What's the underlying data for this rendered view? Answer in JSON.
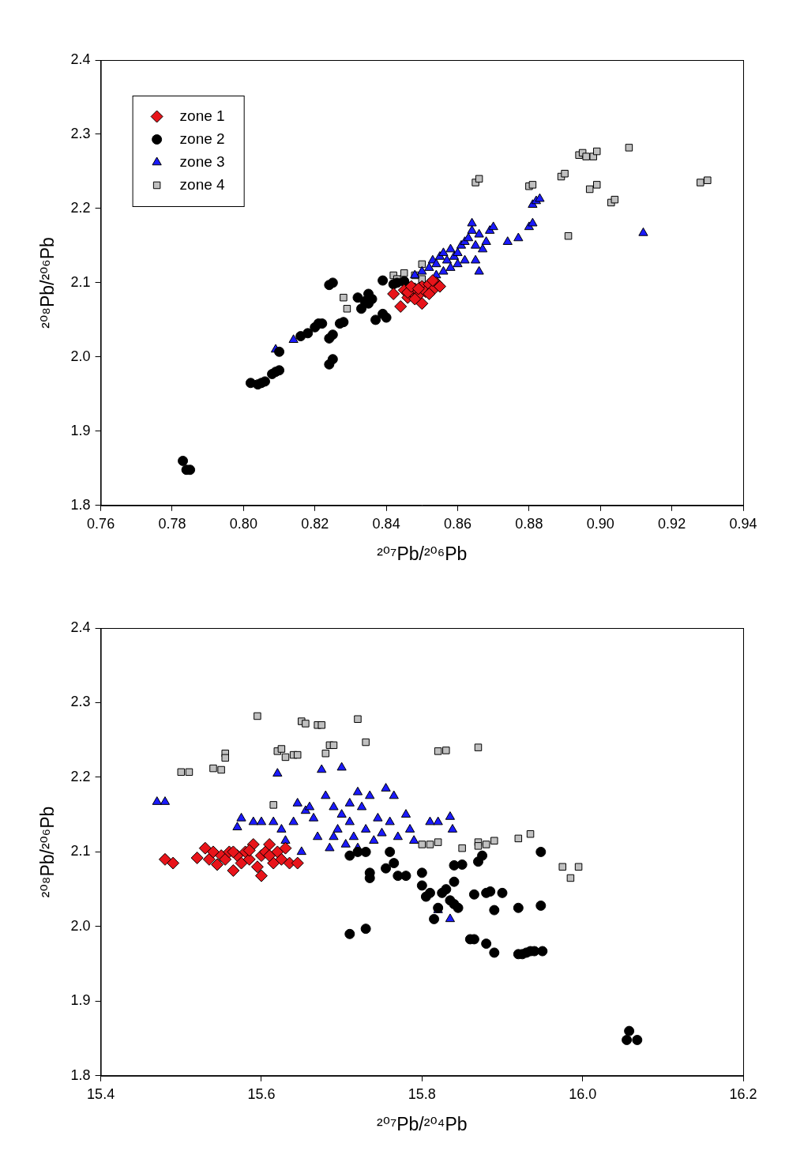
{
  "chart_data": [
    {
      "type": "scatter",
      "x_label": "²⁰⁷Pb/²⁰⁶Pb",
      "y_label": "²⁰⁸Pb/²⁰⁶Pb",
      "xlim": [
        0.76,
        0.94
      ],
      "xticks": [
        0.76,
        0.78,
        {
          "value": 0.8,
          "label": "0.80"
        },
        0.82,
        0.84,
        0.86,
        0.88,
        {
          "value": 0.9,
          "label": "0.90"
        },
        0.92,
        0.94
      ],
      "ylim": [
        1.8,
        2.4
      ],
      "yticks": [
        1.8,
        1.9,
        {
          "value": 2.0,
          "label": "2.0"
        },
        2.1,
        2.2,
        2.3,
        2.4
      ],
      "grid": false,
      "legend": "upper left",
      "series": [
        {
          "name": "zone 1",
          "color": "#e8141a",
          "marker": "diamond",
          "x": [
            0.842,
            0.844,
            0.845,
            0.846,
            0.847,
            0.848,
            0.849,
            0.85,
            0.85,
            0.851,
            0.852,
            0.853,
            0.854,
            0.855,
            0.846,
            0.848,
            0.852,
            0.853,
            0.847,
            0.849
          ],
          "values": [
            2.085,
            2.068,
            2.09,
            2.08,
            2.088,
            2.092,
            2.083,
            2.072,
            2.095,
            2.088,
            2.098,
            2.09,
            2.1,
            2.095,
            2.087,
            2.078,
            2.085,
            2.103,
            2.095,
            2.092
          ]
        },
        {
          "name": "zone 2",
          "color": "#000000",
          "marker": "circle",
          "x": [
            0.783,
            0.784,
            0.785,
            0.802,
            0.804,
            0.805,
            0.806,
            0.808,
            0.809,
            0.81,
            0.81,
            0.816,
            0.818,
            0.82,
            0.821,
            0.822,
            0.824,
            0.825,
            0.824,
            0.825,
            0.824,
            0.825,
            0.827,
            0.828,
            0.832,
            0.833,
            0.834,
            0.835,
            0.835,
            0.836,
            0.837,
            0.839,
            0.84,
            0.839,
            0.842,
            0.843,
            0.845,
            0.846
          ],
          "values": [
            1.86,
            1.848,
            1.848,
            1.965,
            1.963,
            1.965,
            1.967,
            1.977,
            1.98,
            1.982,
            2.007,
            2.028,
            2.032,
            2.04,
            2.045,
            2.045,
            2.025,
            2.03,
            1.99,
            1.997,
            2.097,
            2.1,
            2.045,
            2.047,
            2.08,
            2.065,
            2.075,
            2.085,
            2.072,
            2.078,
            2.05,
            2.058,
            2.053,
            2.103,
            2.098,
            2.1,
            2.102,
            2.095
          ]
        },
        {
          "name": "zone 3",
          "color": "#1a1aff",
          "marker": "triangle",
          "x": [
            0.809,
            0.814,
            0.845,
            0.848,
            0.85,
            0.852,
            0.853,
            0.854,
            0.855,
            0.856,
            0.857,
            0.858,
            0.858,
            0.859,
            0.86,
            0.861,
            0.862,
            0.863,
            0.864,
            0.864,
            0.865,
            0.865,
            0.866,
            0.866,
            0.867,
            0.868,
            0.869,
            0.87,
            0.874,
            0.877,
            0.88,
            0.881,
            0.881,
            0.882,
            0.883,
            0.912,
            0.854,
            0.856,
            0.86,
            0.862
          ],
          "values": [
            2.01,
            2.023,
            2.1,
            2.11,
            2.115,
            2.12,
            2.13,
            2.125,
            2.135,
            2.14,
            2.13,
            2.145,
            2.12,
            2.135,
            2.14,
            2.15,
            2.155,
            2.16,
            2.17,
            2.18,
            2.15,
            2.13,
            2.165,
            2.115,
            2.145,
            2.155,
            2.17,
            2.175,
            2.155,
            2.16,
            2.175,
            2.18,
            2.205,
            2.21,
            2.213,
            2.167,
            2.11,
            2.115,
            2.125,
            2.13
          ]
        },
        {
          "name": "zone 4",
          "color": "#c0c0c0",
          "marker": "square",
          "x": [
            0.828,
            0.829,
            0.842,
            0.843,
            0.845,
            0.848,
            0.85,
            0.85,
            0.865,
            0.866,
            0.88,
            0.881,
            0.889,
            0.89,
            0.891,
            0.894,
            0.895,
            0.896,
            0.898,
            0.899,
            0.897,
            0.899,
            0.903,
            0.904,
            0.908,
            0.928,
            0.93
          ],
          "values": [
            2.08,
            2.065,
            2.11,
            2.105,
            2.113,
            2.11,
            2.125,
            2.105,
            2.235,
            2.24,
            2.23,
            2.232,
            2.243,
            2.247,
            2.163,
            2.272,
            2.275,
            2.27,
            2.27,
            2.277,
            2.226,
            2.232,
            2.208,
            2.212,
            2.282,
            2.235,
            2.238
          ]
        }
      ]
    },
    {
      "type": "scatter",
      "x_label": "²⁰⁷Pb/²⁰⁴Pb",
      "y_label": "²⁰⁸Pb/²⁰⁶Pb",
      "xlim": [
        15.4,
        16.2
      ],
      "xticks": [
        15.4,
        15.6,
        15.8,
        {
          "value": 16.0,
          "label": "16.0"
        },
        16.2
      ],
      "ylim": [
        1.8,
        2.4
      ],
      "yticks": [
        1.8,
        1.9,
        {
          "value": 2.0,
          "label": "2.0"
        },
        2.1,
        2.2,
        2.3,
        2.4
      ],
      "grid": false,
      "series": [
        {
          "name": "zone 1",
          "color": "#e8141a",
          "marker": "diamond",
          "x": [
            15.48,
            15.49,
            15.52,
            15.53,
            15.535,
            15.54,
            15.545,
            15.55,
            15.555,
            15.56,
            15.565,
            15.57,
            15.575,
            15.58,
            15.585,
            15.59,
            15.595,
            15.6,
            15.6,
            15.605,
            15.61,
            15.615,
            15.62,
            15.625,
            15.63,
            15.635,
            15.645,
            15.565,
            15.585,
            15.61
          ],
          "values": [
            2.09,
            2.085,
            2.092,
            2.105,
            2.09,
            2.1,
            2.083,
            2.095,
            2.09,
            2.1,
            2.075,
            2.095,
            2.085,
            2.1,
            2.09,
            2.11,
            2.08,
            2.068,
            2.095,
            2.1,
            2.11,
            2.085,
            2.1,
            2.09,
            2.105,
            2.085,
            2.085,
            2.1,
            2.102,
            2.095
          ]
        },
        {
          "name": "zone 2",
          "color": "#000000",
          "marker": "circle",
          "x": [
            15.71,
            15.73,
            15.71,
            15.72,
            15.73,
            15.735,
            15.735,
            15.755,
            15.76,
            15.765,
            15.77,
            15.78,
            15.8,
            15.8,
            15.805,
            15.81,
            15.815,
            15.82,
            15.825,
            15.83,
            15.835,
            15.84,
            15.84,
            15.845,
            15.84,
            15.85,
            15.86,
            15.865,
            15.865,
            15.87,
            15.875,
            15.88,
            15.88,
            15.885,
            15.89,
            15.89,
            15.9,
            15.92,
            15.925,
            15.93,
            15.935,
            15.94,
            15.95,
            15.92,
            15.948,
            15.948,
            16.055,
            16.058,
            16.068
          ],
          "values": [
            1.99,
            1.997,
            2.095,
            2.1,
            2.1,
            2.072,
            2.065,
            2.078,
            2.1,
            2.085,
            2.068,
            2.068,
            2.072,
            2.055,
            2.04,
            2.045,
            2.01,
            2.025,
            2.045,
            2.05,
            2.035,
            2.06,
            2.03,
            2.025,
            2.082,
            2.083,
            1.983,
            1.983,
            2.043,
            2.087,
            2.095,
            1.977,
            2.045,
            2.047,
            1.965,
            2.022,
            2.045,
            1.963,
            1.963,
            1.965,
            1.967,
            1.967,
            1.967,
            2.025,
            2.028,
            2.1,
            1.848,
            1.86,
            1.848
          ]
        },
        {
          "name": "zone 3",
          "color": "#1a1aff",
          "marker": "triangle",
          "x": [
            15.47,
            15.48,
            15.57,
            15.575,
            15.59,
            15.6,
            15.615,
            15.62,
            15.625,
            15.63,
            15.64,
            15.645,
            15.65,
            15.655,
            15.66,
            15.665,
            15.67,
            15.675,
            15.68,
            15.685,
            15.69,
            15.695,
            15.7,
            15.7,
            15.705,
            15.71,
            15.715,
            15.72,
            15.72,
            15.725,
            15.73,
            15.735,
            15.74,
            15.745,
            15.75,
            15.755,
            15.76,
            15.765,
            15.77,
            15.78,
            15.785,
            15.79,
            15.81,
            15.82,
            15.835,
            15.838,
            15.82,
            15.835,
            15.69,
            15.71
          ],
          "values": [
            2.167,
            2.167,
            2.133,
            2.145,
            2.14,
            2.14,
            2.14,
            2.205,
            2.13,
            2.115,
            2.14,
            2.165,
            2.1,
            2.155,
            2.16,
            2.145,
            2.12,
            2.21,
            2.175,
            2.105,
            2.16,
            2.13,
            2.213,
            2.15,
            2.11,
            2.14,
            2.12,
            2.18,
            2.105,
            2.16,
            2.13,
            2.175,
            2.115,
            2.145,
            2.125,
            2.185,
            2.14,
            2.175,
            2.12,
            2.15,
            2.13,
            2.115,
            2.14,
            2.14,
            2.147,
            2.13,
            2.022,
            2.01,
            2.12,
            2.165
          ]
        },
        {
          "name": "zone 4",
          "color": "#c0c0c0",
          "marker": "square",
          "x": [
            15.5,
            15.51,
            15.54,
            15.55,
            15.555,
            15.555,
            15.595,
            15.615,
            15.62,
            15.625,
            15.63,
            15.64,
            15.645,
            15.65,
            15.655,
            15.67,
            15.675,
            15.68,
            15.685,
            15.69,
            15.72,
            15.73,
            15.8,
            15.81,
            15.82,
            15.82,
            15.83,
            15.85,
            15.87,
            15.87,
            15.87,
            15.88,
            15.89,
            15.92,
            15.935,
            15.975,
            15.985,
            15.995
          ],
          "values": [
            2.207,
            2.207,
            2.212,
            2.21,
            2.232,
            2.226,
            2.282,
            2.163,
            2.235,
            2.238,
            2.227,
            2.23,
            2.23,
            2.275,
            2.272,
            2.27,
            2.27,
            2.232,
            2.243,
            2.243,
            2.278,
            2.247,
            2.11,
            2.11,
            2.113,
            2.235,
            2.236,
            2.105,
            2.113,
            2.108,
            2.24,
            2.11,
            2.115,
            2.118,
            2.124,
            2.08,
            2.065,
            2.08
          ]
        }
      ]
    }
  ]
}
